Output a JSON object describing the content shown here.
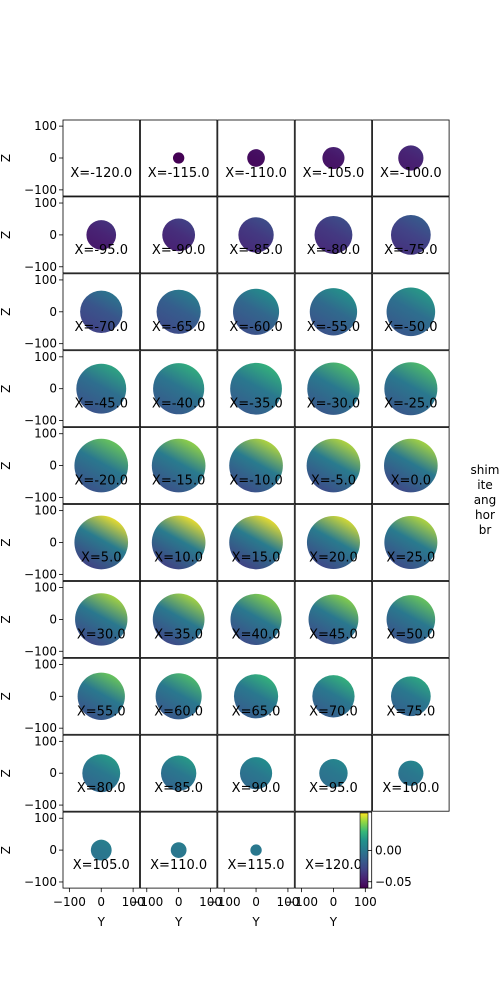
{
  "chart_data": {
    "type": "heatmap",
    "description_note": "",
    "panels": [
      {
        "label": "X=-120.0",
        "radius": 0,
        "mean": -0.06,
        "trend": 0.0
      },
      {
        "label": "X=-115.0",
        "radius": 18,
        "mean": -0.06,
        "trend": 0.0
      },
      {
        "label": "X=-110.0",
        "radius": 28,
        "mean": -0.055,
        "trend": 0.003
      },
      {
        "label": "X=-105.0",
        "radius": 35,
        "mean": -0.05,
        "trend": 0.005
      },
      {
        "label": "X=-100.0",
        "radius": 40,
        "mean": -0.045,
        "trend": 0.006
      },
      {
        "label": "X=-95.0",
        "radius": 47,
        "mean": -0.045,
        "trend": 0.008
      },
      {
        "label": "X=-90.0",
        "radius": 52,
        "mean": -0.04,
        "trend": 0.01
      },
      {
        "label": "X=-85.0",
        "radius": 56,
        "mean": -0.035,
        "trend": 0.012
      },
      {
        "label": "X=-80.0",
        "radius": 60,
        "mean": -0.035,
        "trend": 0.012
      },
      {
        "label": "X=-75.0",
        "radius": 63,
        "mean": -0.03,
        "trend": 0.015
      },
      {
        "label": "X=-70.0",
        "radius": 67,
        "mean": -0.02,
        "trend": 0.02
      },
      {
        "label": "X=-65.0",
        "radius": 70,
        "mean": -0.015,
        "trend": 0.02
      },
      {
        "label": "X=-60.0",
        "radius": 73,
        "mean": -0.01,
        "trend": 0.025
      },
      {
        "label": "X=-55.0",
        "radius": 75,
        "mean": -0.008,
        "trend": 0.025
      },
      {
        "label": "X=-50.0",
        "radius": 77,
        "mean": -0.005,
        "trend": 0.025
      },
      {
        "label": "X=-45.0",
        "radius": 79,
        "mean": -0.005,
        "trend": 0.03
      },
      {
        "label": "X=-40.0",
        "radius": 81,
        "mean": -0.002,
        "trend": 0.03
      },
      {
        "label": "X=-35.0",
        "radius": 82,
        "mean": 0.0,
        "trend": 0.03
      },
      {
        "label": "X=-30.0",
        "radius": 83,
        "mean": 0.0,
        "trend": 0.035
      },
      {
        "label": "X=-25.0",
        "radius": 84,
        "mean": 0.0,
        "trend": 0.035
      },
      {
        "label": "X=-20.0",
        "radius": 85,
        "mean": 0.0,
        "trend": 0.04
      },
      {
        "label": "X=-15.0",
        "radius": 85,
        "mean": 0.002,
        "trend": 0.045
      },
      {
        "label": "X=-10.0",
        "radius": 85,
        "mean": 0.002,
        "trend": 0.05
      },
      {
        "label": "X=-5.0",
        "radius": 85,
        "mean": 0.002,
        "trend": 0.05
      },
      {
        "label": "X=0.0",
        "radius": 85,
        "mean": 0.0,
        "trend": 0.05
      },
      {
        "label": "X=5.0",
        "radius": 85,
        "mean": 0.002,
        "trend": 0.06
      },
      {
        "label": "X=10.0",
        "radius": 85,
        "mean": 0.002,
        "trend": 0.06
      },
      {
        "label": "X=15.0",
        "radius": 85,
        "mean": 0.002,
        "trend": 0.06
      },
      {
        "label": "X=20.0",
        "radius": 84,
        "mean": 0.002,
        "trend": 0.055
      },
      {
        "label": "X=25.0",
        "radius": 84,
        "mean": 0.002,
        "trend": 0.05
      },
      {
        "label": "X=30.0",
        "radius": 83,
        "mean": 0.0,
        "trend": 0.05
      },
      {
        "label": "X=35.0",
        "radius": 82,
        "mean": 0.0,
        "trend": 0.05
      },
      {
        "label": "X=40.0",
        "radius": 81,
        "mean": 0.0,
        "trend": 0.045
      },
      {
        "label": "X=45.0",
        "radius": 79,
        "mean": 0.0,
        "trend": 0.045
      },
      {
        "label": "X=50.0",
        "radius": 77,
        "mean": 0.0,
        "trend": 0.04
      },
      {
        "label": "X=55.0",
        "radius": 75,
        "mean": 0.0,
        "trend": 0.04
      },
      {
        "label": "X=60.0",
        "radius": 73,
        "mean": 0.0,
        "trend": 0.035
      },
      {
        "label": "X=65.0",
        "radius": 70,
        "mean": 0.0,
        "trend": 0.03
      },
      {
        "label": "X=70.0",
        "radius": 67,
        "mean": 0.0,
        "trend": 0.03
      },
      {
        "label": "X=75.0",
        "radius": 63,
        "mean": 0.0,
        "trend": 0.025
      },
      {
        "label": "X=80.0",
        "radius": 60,
        "mean": 0.0,
        "trend": 0.02
      },
      {
        "label": "X=85.0",
        "radius": 56,
        "mean": 0.0,
        "trend": 0.02
      },
      {
        "label": "X=90.0",
        "radius": 51,
        "mean": 0.0,
        "trend": 0.015
      },
      {
        "label": "X=95.0",
        "radius": 45,
        "mean": 0.0,
        "trend": 0.01
      },
      {
        "label": "X=100.0",
        "radius": 40,
        "mean": 0.0,
        "trend": 0.01
      },
      {
        "label": "X=105.0",
        "radius": 33,
        "mean": 0.0,
        "trend": 0.005
      },
      {
        "label": "X=110.0",
        "radius": 25,
        "mean": 0.0,
        "trend": 0.003
      },
      {
        "label": "X=115.0",
        "radius": 18,
        "mean": 0.0,
        "trend": 0.0
      },
      {
        "label": "X=120.0",
        "radius": 0,
        "mean": 0.0,
        "trend": 0.0
      }
    ],
    "rows": 10,
    "cols": 5,
    "xlabel": "Y",
    "ylabel": "Z",
    "xlim": [
      -120,
      120
    ],
    "ylim": [
      -120,
      120
    ],
    "xticks": [
      "−100",
      "0",
      "100"
    ],
    "yticks": [
      "100",
      "0",
      "−100"
    ],
    "colorbar": {
      "ticks": [
        "0.00",
        "−0.05"
      ],
      "tick_values": [
        0.0,
        -0.05
      ],
      "range": [
        -0.06,
        0.06
      ],
      "colormap": "viridis"
    }
  },
  "side_text": "shim\nite\nang\nhor\nbr"
}
